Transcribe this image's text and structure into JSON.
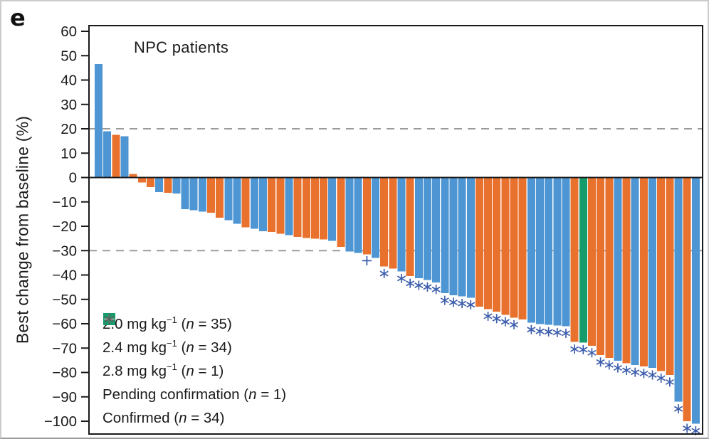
{
  "panel_label": "e",
  "colors": {
    "dose_2_0": "#4E96D3",
    "dose_2_4": "#E8712E",
    "dose_2_8": "#169B6A",
    "chart_marker": "#3D5EAC",
    "legend_plus": "#A6A6A6",
    "legend_asterisk": "#616161",
    "ref_line": "#9B9B9B",
    "axis": "#1A1A1A"
  },
  "chart_data": {
    "type": "bar",
    "title": "NPC patients",
    "ylabel": "Best change from baseline (%)",
    "xlabel": "",
    "ylim": [
      -105,
      62
    ],
    "yticks": [
      60,
      50,
      40,
      30,
      20,
      10,
      0,
      -10,
      -20,
      -30,
      -40,
      -50,
      -60,
      -70,
      -80,
      -90,
      -100
    ],
    "ref_lines": [
      20,
      -30
    ],
    "grid": false,
    "legend_position": "lower-left",
    "legend": [
      {
        "symbol": "square",
        "dose": "2.0",
        "base": "2.0 mg kg",
        "sup": "−1",
        "n": "35"
      },
      {
        "symbol": "square",
        "dose": "2.4",
        "base": "2.4 mg kg",
        "sup": "−1",
        "n": "34"
      },
      {
        "symbol": "square",
        "dose": "2.8",
        "base": "2.8 mg kg",
        "sup": "−1",
        "n": "1"
      },
      {
        "symbol": "plus",
        "dose": "",
        "base": "Pending confirmation",
        "sup": "",
        "n": "1"
      },
      {
        "symbol": "asterisk",
        "dose": "",
        "base": "Confirmed",
        "sup": "",
        "n": "34"
      }
    ],
    "values": [
      46.5,
      19,
      17.5,
      17,
      1.5,
      -2,
      -4,
      -6,
      -6.3,
      -6.5,
      -13,
      -13.4,
      -14,
      -14.5,
      -16.5,
      -17.5,
      -19,
      -20.5,
      -21,
      -22,
      -22.4,
      -23,
      -23.7,
      -24.4,
      -24.8,
      -25.1,
      -25.4,
      -26,
      -28.5,
      -30.4,
      -31,
      -31.5,
      -33,
      -36.5,
      -37.3,
      -38.5,
      -40.5,
      -41.3,
      -42,
      -43,
      -47.5,
      -48.3,
      -48.8,
      -49.3,
      -53,
      -54,
      -55,
      -56.3,
      -57.5,
      -58.3,
      -59.5,
      -60.2,
      -60.4,
      -60.7,
      -61,
      -67.5,
      -67.7,
      -69,
      -72.8,
      -74,
      -75.2,
      -76.2,
      -77,
      -77.5,
      -78.1,
      -79.4,
      -81,
      -92,
      -100,
      -101
    ],
    "dose": [
      "2.0",
      "2.0",
      "2.4",
      "2.0",
      "2.4",
      "2.4",
      "2.4",
      "2.0",
      "2.4",
      "2.0",
      "2.0",
      "2.0",
      "2.0",
      "2.4",
      "2.4",
      "2.0",
      "2.0",
      "2.4",
      "2.0",
      "2.0",
      "2.4",
      "2.4",
      "2.0",
      "2.4",
      "2.4",
      "2.4",
      "2.4",
      "2.0",
      "2.4",
      "2.0",
      "2.0",
      "2.4",
      "2.0",
      "2.4",
      "2.4",
      "2.0",
      "2.4",
      "2.0",
      "2.0",
      "2.0",
      "2.0",
      "2.0",
      "2.0",
      "2.0",
      "2.4",
      "2.4",
      "2.4",
      "2.4",
      "2.4",
      "2.4",
      "2.0",
      "2.0",
      "2.0",
      "2.0",
      "2.0",
      "2.4",
      "2.8",
      "2.4",
      "2.4",
      "2.4",
      "2.0",
      "2.4",
      "2.0",
      "2.4",
      "2.0",
      "2.4",
      "2.4",
      "2.0",
      "2.4",
      "2.0"
    ],
    "status": [
      "",
      "",
      "",
      "",
      "",
      "",
      "",
      "",
      "",
      "",
      "",
      "",
      "",
      "",
      "",
      "",
      "",
      "",
      "",
      "",
      "",
      "",
      "",
      "",
      "",
      "",
      "",
      "",
      "",
      "",
      "",
      "p",
      "",
      "c",
      "",
      "c",
      "c",
      "c",
      "c",
      "c",
      "c",
      "c",
      "c",
      "c",
      "",
      "c",
      "c",
      "c",
      "c",
      "",
      "c",
      "c",
      "c",
      "c",
      "c",
      "c",
      "c",
      "c",
      "c",
      "c",
      "c",
      "c",
      "c",
      "c",
      "c",
      "c",
      "c",
      "c",
      "c",
      "c"
    ],
    "status_codes": {
      "p": "pending confirmation",
      "c": "confirmed",
      "": "none"
    }
  }
}
